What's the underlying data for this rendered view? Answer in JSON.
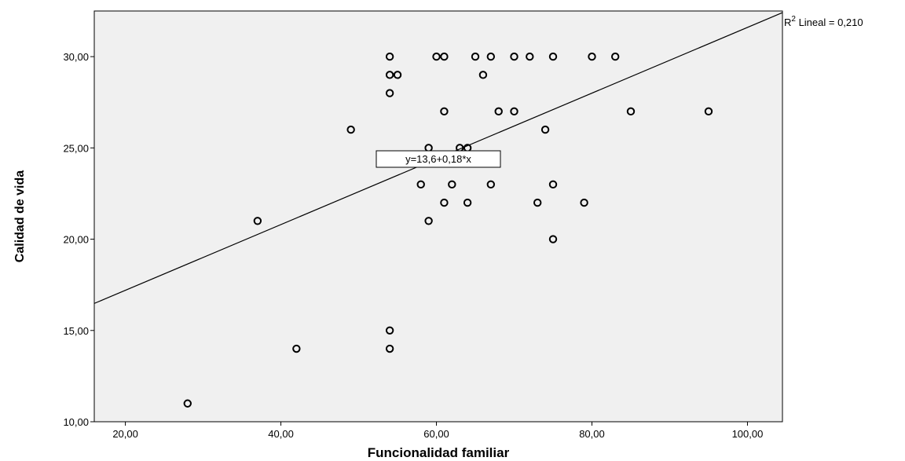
{
  "chart_data": {
    "type": "scatter",
    "xlabel": "Funcionalidad familiar",
    "ylabel": "Calidad de vida",
    "xlim": [
      16,
      104.5
    ],
    "ylim": [
      10,
      32.5
    ],
    "x_ticks": [
      20,
      40,
      60,
      80,
      100
    ],
    "x_tick_labels": [
      "20,00",
      "40,00",
      "60,00",
      "80,00",
      "100,00"
    ],
    "y_ticks": [
      10,
      15,
      20,
      25,
      30
    ],
    "y_tick_labels": [
      "10,00",
      "15,00",
      "20,00",
      "25,00",
      "30,00"
    ],
    "grid": false,
    "background_color": "#f0f0f0",
    "points": [
      {
        "x": 28,
        "y": 11
      },
      {
        "x": 37,
        "y": 21
      },
      {
        "x": 42,
        "y": 14
      },
      {
        "x": 49,
        "y": 26
      },
      {
        "x": 54,
        "y": 30
      },
      {
        "x": 54,
        "y": 29
      },
      {
        "x": 55,
        "y": 29
      },
      {
        "x": 54,
        "y": 28
      },
      {
        "x": 54,
        "y": 15
      },
      {
        "x": 54,
        "y": 14
      },
      {
        "x": 58,
        "y": 23
      },
      {
        "x": 59,
        "y": 25
      },
      {
        "x": 59,
        "y": 21
      },
      {
        "x": 60,
        "y": 30
      },
      {
        "x": 61,
        "y": 30
      },
      {
        "x": 61,
        "y": 27
      },
      {
        "x": 61,
        "y": 22
      },
      {
        "x": 62,
        "y": 23
      },
      {
        "x": 63,
        "y": 25
      },
      {
        "x": 64,
        "y": 25
      },
      {
        "x": 64,
        "y": 22
      },
      {
        "x": 65,
        "y": 30
      },
      {
        "x": 66,
        "y": 29
      },
      {
        "x": 67,
        "y": 30
      },
      {
        "x": 67,
        "y": 23
      },
      {
        "x": 68,
        "y": 27
      },
      {
        "x": 70,
        "y": 30
      },
      {
        "x": 70,
        "y": 27
      },
      {
        "x": 72,
        "y": 30
      },
      {
        "x": 73,
        "y": 22
      },
      {
        "x": 74,
        "y": 26
      },
      {
        "x": 75,
        "y": 30
      },
      {
        "x": 75,
        "y": 23
      },
      {
        "x": 75,
        "y": 20
      },
      {
        "x": 79,
        "y": 22
      },
      {
        "x": 80,
        "y": 30
      },
      {
        "x": 83,
        "y": 30
      },
      {
        "x": 85,
        "y": 27
      },
      {
        "x": 95,
        "y": 27
      }
    ],
    "fit_line": {
      "intercept": 13.6,
      "slope": 0.18
    },
    "fit_equation_label": "y=13,6+0,18*x",
    "r2_label_prefix": "R",
    "r2_label_sup": "2",
    "r2_label_suffix": " Lineal = 0,210"
  }
}
